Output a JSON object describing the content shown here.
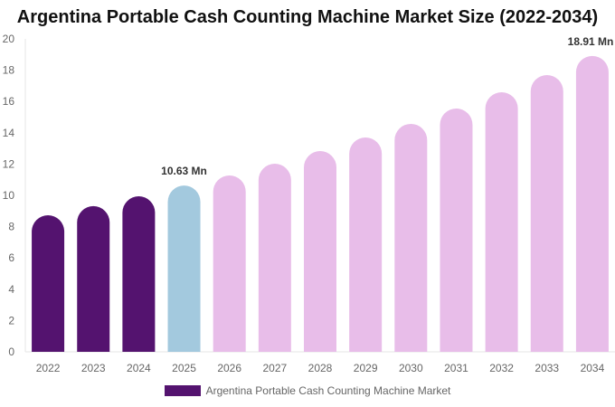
{
  "chart_data": {
    "type": "bar",
    "title": "Argentina Portable Cash Counting Machine Market Size (2022-2034)",
    "xlabel": "",
    "ylabel": "",
    "ylim": [
      0,
      20
    ],
    "yticks": [
      0,
      2,
      4,
      6,
      8,
      10,
      12,
      14,
      16,
      18,
      20
    ],
    "categories": [
      "2022",
      "2023",
      "2024",
      "2025",
      "2026",
      "2027",
      "2028",
      "2029",
      "2030",
      "2031",
      "2032",
      "2033",
      "2034"
    ],
    "series": [
      {
        "name": "Argentina Portable Cash Counting Machine Market",
        "values": [
          8.73,
          9.31,
          9.94,
          10.63,
          11.27,
          12.02,
          12.83,
          13.7,
          14.57,
          15.55,
          16.59,
          17.69,
          18.91
        ]
      }
    ],
    "bar_colors": [
      "#54136f",
      "#54136f",
      "#54136f",
      "#a3c9de",
      "#e8bde9",
      "#e8bde9",
      "#e8bde9",
      "#e8bde9",
      "#e8bde9",
      "#e8bde9",
      "#e8bde9",
      "#e8bde9",
      "#e8bde9"
    ],
    "data_labels": [
      {
        "category": "2025",
        "text": "10.63 Mn"
      },
      {
        "category": "2034",
        "text": "18.91 Mn"
      }
    ],
    "grid": false,
    "legend_position": "bottom",
    "legend_color": "#54136f"
  }
}
